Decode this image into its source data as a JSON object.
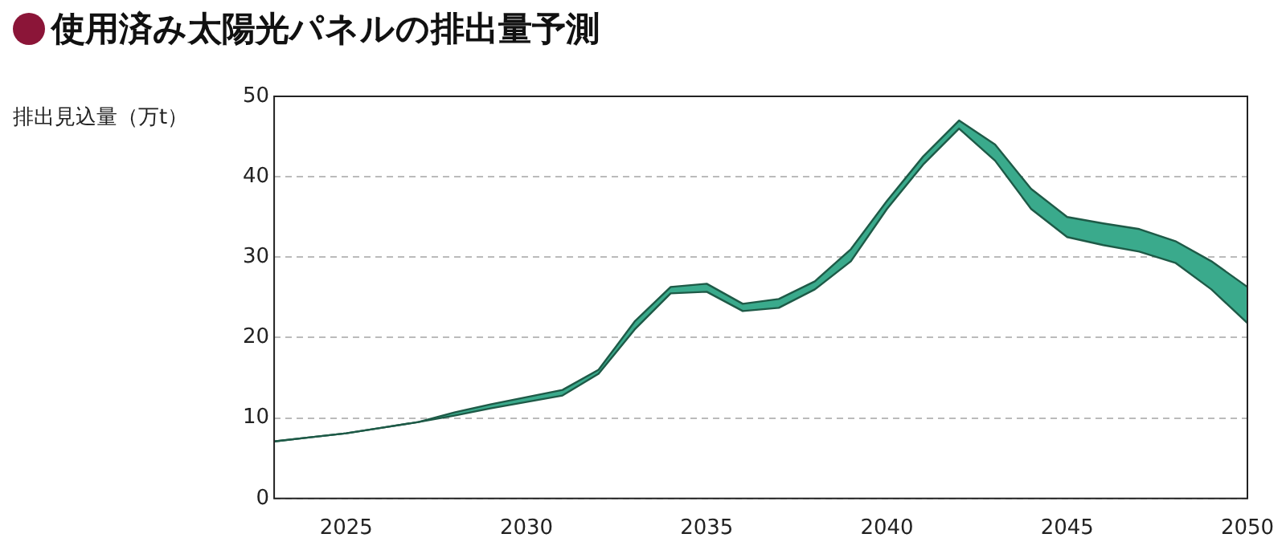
{
  "chart_data": {
    "type": "line",
    "title": "使用済み太陽光パネルの排出量予測",
    "ylabel": "排出見込量（万t）",
    "x": [
      2023,
      2024,
      2025,
      2026,
      2027,
      2028,
      2029,
      2030,
      2031,
      2032,
      2033,
      2034,
      2035,
      2036,
      2037,
      2038,
      2039,
      2040,
      2041,
      2042,
      2043,
      2044,
      2045,
      2046,
      2047,
      2048,
      2049,
      2050
    ],
    "series": [
      {
        "color": "#1e5a47",
        "values": [
          7.1,
          7.6,
          8.1,
          8.8,
          9.5,
          10.3,
          11.2,
          12.0,
          12.8,
          15.5,
          21.0,
          25.5,
          25.7,
          23.3,
          23.7,
          26.0,
          29.5,
          36.0,
          41.5,
          46.0,
          42.0,
          36.0,
          32.5,
          31.5,
          30.7,
          29.3,
          26.0,
          21.8
        ]
      },
      {
        "type": "area",
        "color": "#3aaa8c",
        "values": [
          7.1,
          7.6,
          8.1,
          8.8,
          9.5,
          10.7,
          11.7,
          12.6,
          13.5,
          16.0,
          22.0,
          26.3,
          26.7,
          24.2,
          24.8,
          27.0,
          31.0,
          37.0,
          42.5,
          47.0,
          44.0,
          38.5,
          35.0,
          34.2,
          33.5,
          32.0,
          29.5,
          26.3
        ]
      }
    ],
    "xlim": [
      2023,
      2050
    ],
    "xticks": [
      2025,
      2030,
      2035,
      2040,
      2045,
      2050
    ],
    "ylim": [
      0,
      50
    ],
    "yticks": [
      0,
      10,
      20,
      30,
      40,
      50
    ],
    "grid": "y"
  }
}
